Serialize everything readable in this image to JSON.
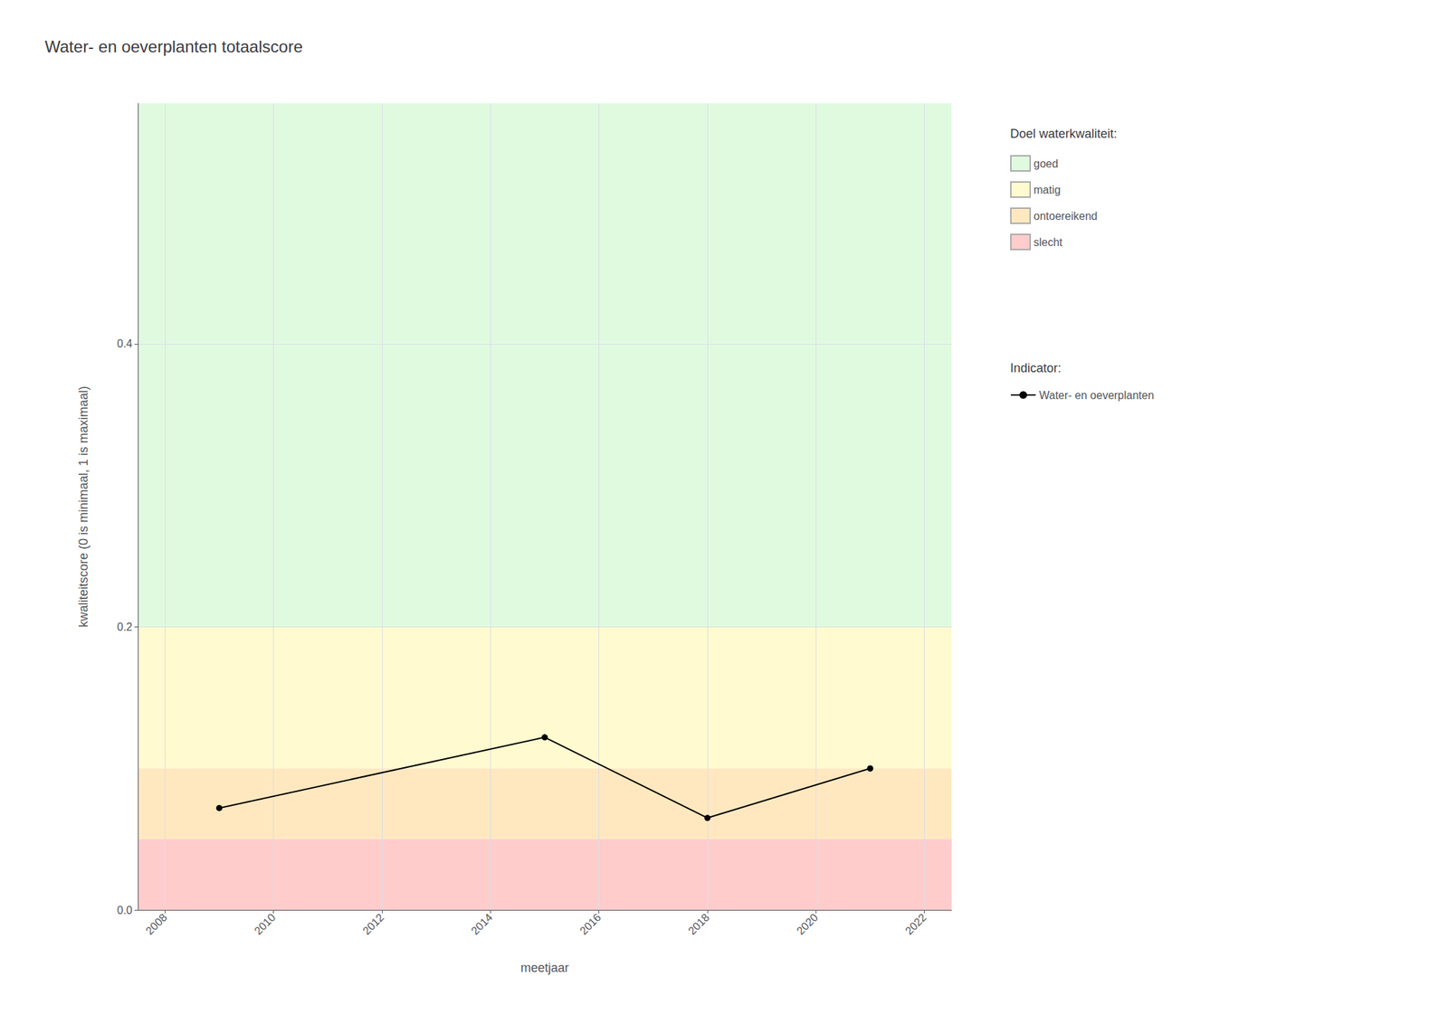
{
  "chart_data": {
    "type": "line",
    "title": "Water- en oeverplanten totaalscore",
    "xlabel": "meetjaar",
    "ylabel": "kwaliteitscore (0 is minimaal, 1 is maximaal)",
    "x": [
      2009,
      2015,
      2018,
      2021
    ],
    "series": [
      {
        "name": "Water- en oeverplanten",
        "color": "#000000",
        "marker": "circle",
        "values": [
          0.072,
          0.122,
          0.065,
          0.1
        ]
      }
    ],
    "xlim": [
      2007.5,
      2022.5
    ],
    "xticks": [
      2008,
      2010,
      2012,
      2014,
      2016,
      2018,
      2020,
      2022
    ],
    "ylim": [
      0,
      0.57
    ],
    "yticks": [
      {
        "value": 0,
        "label": "0.0"
      },
      0.2,
      0.4
    ],
    "grid": true,
    "legend": "right",
    "legend_titles": {
      "bands": "Doel waterkwaliteit:",
      "series": "Indicator:"
    },
    "bands": [
      {
        "name": "goed",
        "ymin": 0.2,
        "ymax": 0.57,
        "color": "#E0FAE0"
      },
      {
        "name": "matig",
        "ymin": 0.1,
        "ymax": 0.2,
        "color": "#FFFAD0"
      },
      {
        "name": "ontoereikend",
        "ymin": 0.05,
        "ymax": 0.1,
        "color": "#FFE8C0"
      },
      {
        "name": "slecht",
        "ymin": 0.0,
        "ymax": 0.05,
        "color": "#FFCCCC"
      }
    ]
  }
}
